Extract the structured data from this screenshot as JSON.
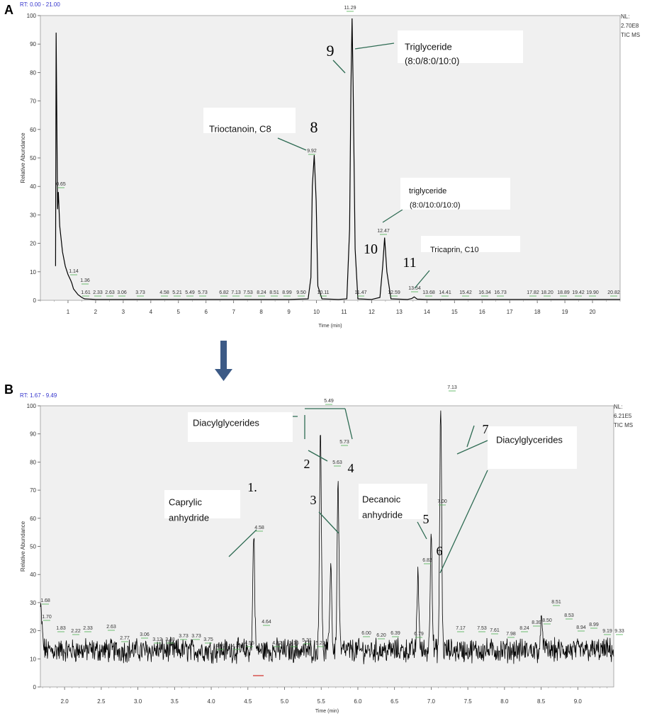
{
  "chart_data": [
    {
      "panel": "A",
      "type": "line",
      "rt_label": "RT: 0.00 - 21.00",
      "header_lines": [
        "NL:",
        "2.70E8",
        "TIC MS"
      ],
      "ylabel": "Relative Abundance",
      "xlabel": "Time (min)",
      "xlim": [
        0,
        21
      ],
      "ylim": [
        0,
        100
      ],
      "xticks": [
        1,
        2,
        3,
        4,
        5,
        6,
        7,
        8,
        9,
        10,
        11,
        12,
        13,
        14,
        15,
        16,
        17,
        18,
        19,
        20
      ],
      "yticks": [
        0,
        10,
        20,
        30,
        40,
        50,
        60,
        70,
        80,
        90,
        100
      ],
      "x": [
        0.55,
        0.57,
        0.62,
        0.65,
        0.7,
        0.8,
        0.9,
        1.0,
        1.1,
        1.14,
        1.2,
        1.36,
        1.5,
        1.6,
        2.0,
        3.0,
        5.0,
        7.0,
        9.0,
        9.7,
        9.8,
        9.85,
        9.92,
        9.99,
        10.05,
        10.2,
        10.8,
        11.1,
        11.2,
        11.25,
        11.29,
        11.33,
        11.4,
        11.5,
        12.0,
        12.3,
        12.4,
        12.47,
        12.55,
        12.7,
        13.3,
        13.45,
        13.54,
        13.65,
        14.0,
        17.0,
        20.0,
        21.0
      ],
      "y": [
        12,
        94,
        32,
        38,
        26,
        17,
        12,
        9,
        7,
        6,
        4,
        2,
        1,
        0.5,
        0.3,
        0.3,
        0.3,
        0.3,
        0.3,
        0.5,
        8,
        40,
        51,
        35,
        5,
        0.5,
        0.3,
        0.5,
        25,
        75,
        99,
        75,
        18,
        0.5,
        0.3,
        1,
        12,
        22,
        10,
        0.5,
        0.3,
        0.6,
        1.2,
        0.4,
        0.3,
        0.3,
        0.3,
        0.3
      ],
      "peak_labels": [
        "0.65",
        "1.14",
        "1.36",
        "1.61",
        "2.33",
        "2.63",
        "3.06",
        "3.73",
        "4.58",
        "5.21",
        "5.49",
        "5.73",
        "6.82",
        "7.13",
        "7.53",
        "8.24",
        "8.51",
        "8.99",
        "9.50",
        "9.92",
        "10.11",
        "11.29",
        "11.47",
        "12.47",
        "12.59",
        "13.54",
        "13.68",
        "14.41",
        "15.42",
        "16.34",
        "16.73",
        "17.82",
        "18.20",
        "18.89",
        "19.42",
        "19.90",
        "20.82"
      ],
      "peak_numbers": [
        "8",
        "9",
        "10",
        "11"
      ],
      "annotations": [
        {
          "text": "Trioctanoin, C8"
        },
        {
          "text": "Triglyceride",
          "text2": "(8:0/8:0/10:0)"
        },
        {
          "text": "triglyceride",
          "text2": "(8:0/10:0/10:0)"
        },
        {
          "text": "Tricaprin, C10"
        }
      ]
    },
    {
      "panel": "B",
      "type": "line",
      "rt_label": "RT: 1.67 - 9.49",
      "header_lines": [
        "NL:",
        "6.21E5",
        "TIC MS"
      ],
      "ylabel": "Relative Abundance",
      "xlabel": "Time (min)",
      "xlim": [
        1.67,
        9.49
      ],
      "ylim": [
        0,
        100
      ],
      "xticks": [
        "2.0",
        "2.5",
        "3.0",
        "3.5",
        "4.0",
        "4.5",
        "5.0",
        "5.5",
        "6.0",
        "6.5",
        "7.0",
        "7.5",
        "8.0",
        "8.5",
        "9.0"
      ],
      "yticks": [
        0,
        10,
        20,
        30,
        40,
        50,
        60,
        70,
        80,
        90,
        100
      ],
      "baseline": 13,
      "peaks": [
        {
          "x": 1.67,
          "y": 28
        },
        {
          "x": 4.58,
          "y": 55
        },
        {
          "x": 5.49,
          "y": 94
        },
        {
          "x": 5.63,
          "y": 45
        },
        {
          "x": 5.73,
          "y": 73
        },
        {
          "x": 6.82,
          "y": 41
        },
        {
          "x": 7.0,
          "y": 58
        },
        {
          "x": 7.13,
          "y": 100
        },
        {
          "x": 8.51,
          "y": 25
        }
      ],
      "peak_labels": [
        "1.68",
        "1.70",
        "1.83",
        "2.22",
        "2.33",
        "2.63",
        "2.77",
        "3.06",
        "3.12",
        "3.48",
        "3.73",
        "3.73",
        "3.75",
        "4.09",
        "4.39",
        "4.55",
        "4.58",
        "4.64",
        "4.82",
        "5.16",
        "5.21",
        "5.22",
        "5.49",
        "5.63",
        "5.73",
        "6.00",
        "6.20",
        "6.39",
        "6.79",
        "6.82",
        "7.00",
        "7.13",
        "7.17",
        "7.53",
        "7.61",
        "7.98",
        "8.24",
        "8.39",
        "8.50",
        "8.51",
        "8.53",
        "8.94",
        "8.99",
        "9.19",
        "9.33"
      ],
      "peak_numbers": [
        "1.",
        "2",
        "3",
        "4",
        "5",
        "6",
        "7"
      ],
      "annotations": [
        {
          "text": "Caprylic",
          "text2": "anhydride"
        },
        {
          "text": "Diacylglycerides"
        },
        {
          "text": "Decanoic",
          "text2": "anhydride"
        },
        {
          "text": "Diacylglycerides"
        }
      ]
    }
  ],
  "colors": {
    "plot_bg": "#f0f0f0",
    "trace": "#000000",
    "label_text": "#333333",
    "rt_text": "#3333cc",
    "leader": "#2e6b53",
    "arrow": "#3c5a86",
    "peak_mark_green": "#4caf50",
    "peak_mark_red": "#d9534f"
  }
}
